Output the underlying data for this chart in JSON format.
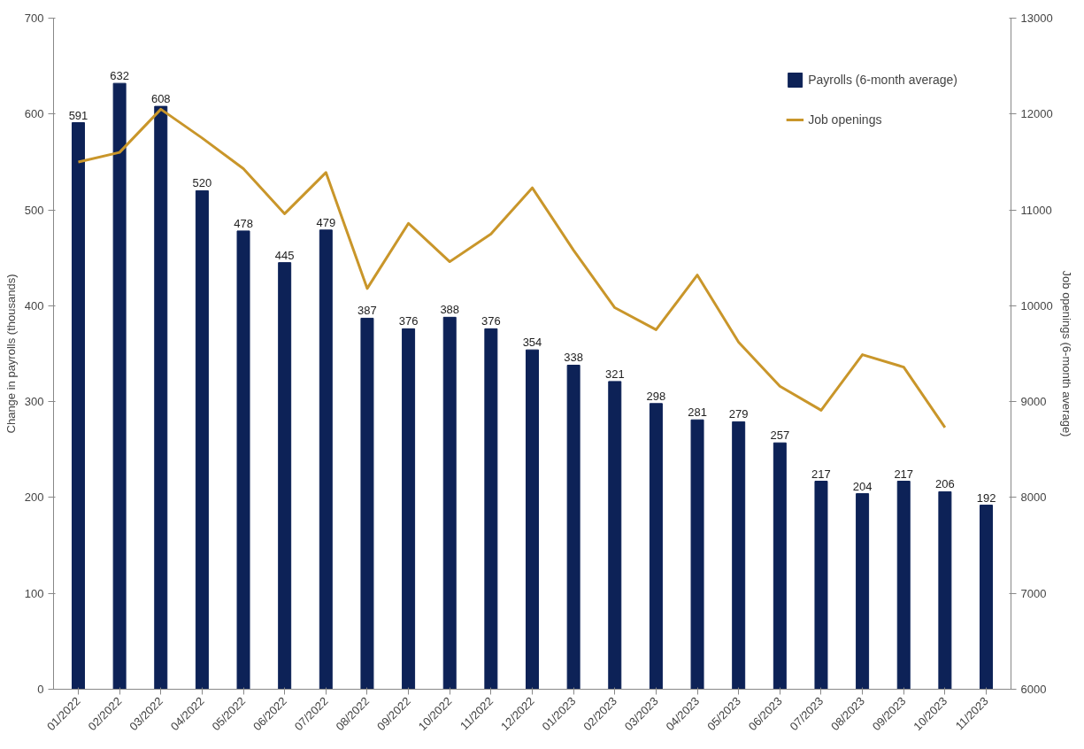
{
  "chart_data": {
    "type": "bar",
    "ylabel": "Change in payrolls (thousands)",
    "y2label": "Job openings (6-month average)",
    "categories": [
      "01/2022",
      "02/2022",
      "03/2022",
      "04/2022",
      "05/2022",
      "06/2022",
      "07/2022",
      "08/2022",
      "09/2022",
      "10/2022",
      "11/2022",
      "12/2022",
      "01/2023",
      "02/2023",
      "03/2023",
      "04/2023",
      "05/2023",
      "06/2023",
      "07/2023",
      "08/2023",
      "09/2023",
      "10/2023",
      "11/2023"
    ],
    "series": [
      {
        "name": "Payrolls (6-month average)",
        "color": "#0d2257",
        "values": [
          591,
          632,
          608,
          520,
          478,
          445,
          479,
          387,
          376,
          388,
          376,
          354,
          338,
          321,
          298,
          281,
          279,
          257,
          217,
          204,
          217,
          206,
          192
        ],
        "value_labels": [
          "591",
          "632",
          "608",
          "520",
          "478",
          "445",
          "479",
          "387",
          "376",
          "388",
          "376",
          "354",
          "338",
          "321",
          "298",
          "281",
          "279",
          "257",
          "217",
          "204",
          "217",
          "206",
          "192"
        ]
      },
      {
        "name": "Job openings",
        "type": "line",
        "axis": "y2",
        "color": "#c9962a",
        "values": [
          11500,
          11600,
          12050,
          11750,
          11430,
          10960,
          11390,
          10180,
          10860,
          10460,
          10750,
          11230,
          10580,
          9980,
          9750,
          10320,
          9620,
          9160,
          8910,
          9490,
          9360,
          8730,
          null
        ]
      }
    ],
    "ylim": [
      0,
      700
    ],
    "yticks": [
      0,
      100,
      200,
      300,
      400,
      500,
      600,
      700
    ],
    "y2lim": [
      6000,
      13000
    ],
    "y2ticks": [
      6000,
      7000,
      8000,
      9000,
      10000,
      11000,
      12000,
      13000
    ],
    "grid": false,
    "legend": "top right",
    "marker": "none",
    "line_style": "solid"
  }
}
